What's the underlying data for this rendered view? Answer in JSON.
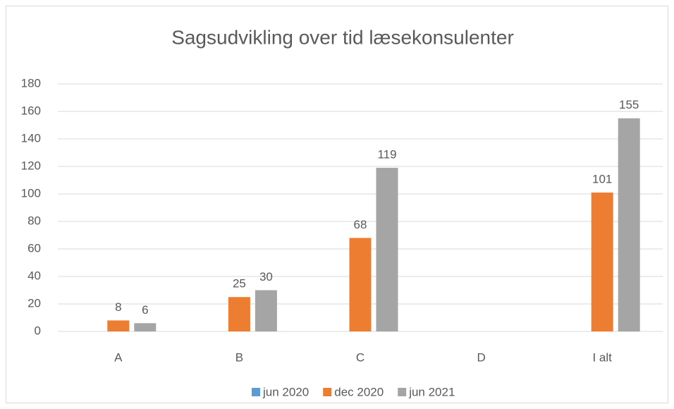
{
  "chart_data": {
    "type": "bar",
    "title": "Sagsudvikling over tid læsekonsulenter",
    "categories": [
      "A",
      "B",
      "C",
      "D",
      "I alt"
    ],
    "series": [
      {
        "name": "jun 2020",
        "color": "#5b9bd5",
        "values": [
          null,
          null,
          null,
          null,
          null
        ]
      },
      {
        "name": "dec 2020",
        "color": "#ed7d31",
        "values": [
          8,
          25,
          68,
          null,
          101
        ]
      },
      {
        "name": "jun 2021",
        "color": "#a5a5a5",
        "values": [
          6,
          30,
          119,
          null,
          155
        ]
      }
    ],
    "ylim": [
      0,
      180
    ],
    "yticks": [
      0,
      20,
      40,
      60,
      80,
      100,
      120,
      140,
      160,
      180
    ],
    "grid": true,
    "legend": "bottom"
  }
}
